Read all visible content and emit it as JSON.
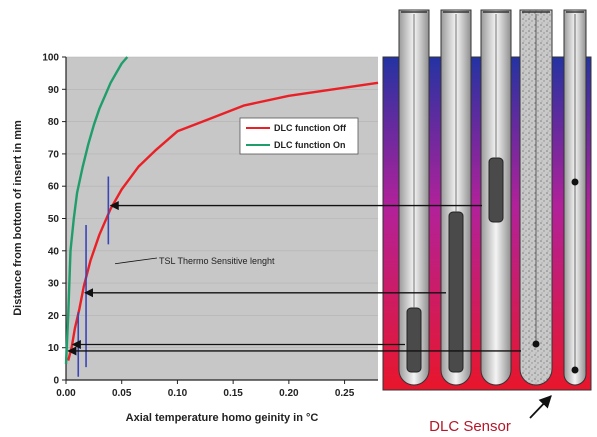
{
  "chart_data": {
    "type": "line",
    "xlabel": "Axial temperature homo geinity in °C",
    "ylabel": "Distance from bottom of insert in mm",
    "xlim": [
      0,
      0.28
    ],
    "ylim": [
      0,
      100
    ],
    "x_ticks": [
      "0.00",
      "0.05",
      "0.10",
      "0.15",
      "0.20",
      "0.25"
    ],
    "x_tick_values": [
      0,
      0.05,
      0.1,
      0.15,
      0.2,
      0.25
    ],
    "y_ticks": [
      "0",
      "10",
      "20",
      "30",
      "40",
      "50",
      "60",
      "70",
      "80",
      "90",
      "100"
    ],
    "y_tick_values": [
      0,
      10,
      20,
      30,
      40,
      50,
      60,
      70,
      80,
      90,
      100
    ],
    "legend_position": "right-upper",
    "series": [
      {
        "name": "DLC function Off",
        "color": "#ea2027",
        "x": [
          0.002,
          0.005,
          0.008,
          0.012,
          0.016,
          0.022,
          0.03,
          0.04,
          0.05,
          0.065,
          0.08,
          0.1,
          0.13,
          0.16,
          0.2,
          0.24,
          0.28
        ],
        "y": [
          6,
          10,
          16,
          22,
          29,
          37,
          45,
          53,
          59,
          66,
          71,
          77,
          81,
          85,
          88,
          90,
          92
        ]
      },
      {
        "name": "DLC function On",
        "color": "#1f9d6b",
        "x": [
          0.0,
          0.002,
          0.004,
          0.007,
          0.01,
          0.015,
          0.02,
          0.025,
          0.03,
          0.035,
          0.04,
          0.045,
          0.05,
          0.055
        ],
        "y": [
          5,
          20,
          40,
          50,
          58,
          66,
          73,
          79,
          84,
          88,
          92,
          95,
          98,
          100
        ]
      }
    ],
    "tsl_bars": [
      {
        "x": 0.038,
        "y1": 42,
        "y2": 63
      },
      {
        "x": 0.018,
        "y1": 4,
        "y2": 48
      },
      {
        "x": 0.011,
        "y1": 1,
        "y2": 21
      }
    ],
    "arrows_to_y": [
      54,
      27,
      11,
      9
    ],
    "annotation": "TSL Thermo Sensitive lenght",
    "annotation_point": {
      "x": 0.044,
      "y": 36
    }
  },
  "sensor": {
    "label": "DLC Sensor",
    "gradient_top": "#2433a2",
    "gradient_mid": "#b2219a",
    "gradient_bottom": "#e8162b"
  }
}
